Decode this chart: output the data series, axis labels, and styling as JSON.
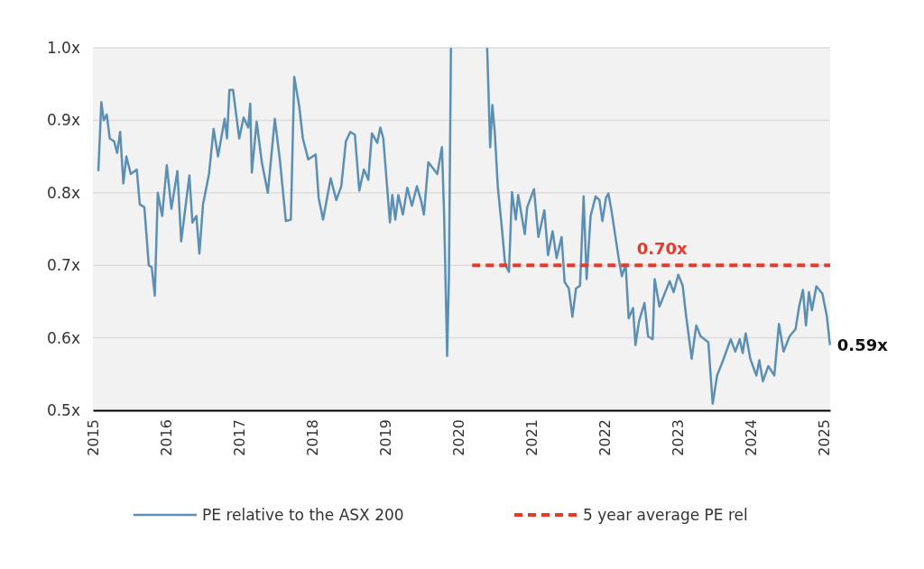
{
  "chart_data": {
    "type": "line",
    "xlim": [
      "2015-01-01",
      "2025-02-01"
    ],
    "xticks": [
      "2015",
      "2016",
      "2017",
      "2018",
      "2019",
      "2020",
      "2021",
      "2022",
      "2023",
      "2024",
      "2025"
    ],
    "ylim": [
      0.5,
      1.0
    ],
    "yticks": [
      {
        "value": 0.5,
        "label": "0.5x"
      },
      {
        "value": 0.6,
        "label": "0.6x"
      },
      {
        "value": 0.7,
        "label": "0.7x"
      },
      {
        "value": 0.8,
        "label": "0.8x"
      },
      {
        "value": 0.9,
        "label": "0.9x"
      },
      {
        "value": 1.0,
        "label": "1.0x"
      }
    ],
    "grid": "y",
    "legend": "bottom",
    "series": [
      {
        "name": "PE relative to the ASX 200",
        "color": "#5b8fb3",
        "line_style": "solid",
        "x": [
          "2015-01-28",
          "2015-02-12",
          "2015-02-24",
          "2015-03-11",
          "2015-03-26",
          "2015-04-17",
          "2015-05-02",
          "2015-05-17",
          "2015-06-02",
          "2015-06-17",
          "2015-07-09",
          "2015-08-08",
          "2015-08-23",
          "2015-09-15",
          "2015-10-07",
          "2015-10-22",
          "2015-11-06",
          "2015-11-21",
          "2015-12-13",
          "2016-01-05",
          "2016-01-28",
          "2016-02-27",
          "2016-03-17",
          "2016-04-27",
          "2016-05-12",
          "2016-06-01",
          "2016-06-16",
          "2016-07-04",
          "2016-08-03",
          "2016-08-26",
          "2016-09-17",
          "2016-10-20",
          "2016-11-01",
          "2016-11-13",
          "2016-12-01",
          "2017-01-01",
          "2017-01-23",
          "2017-02-15",
          "2017-02-25",
          "2017-03-05",
          "2017-03-29",
          "2017-04-24",
          "2017-05-24",
          "2017-06-28",
          "2017-07-23",
          "2017-08-22",
          "2017-09-16",
          "2017-10-03",
          "2017-10-28",
          "2017-11-15",
          "2017-12-12",
          "2018-01-18",
          "2018-02-02",
          "2018-02-24",
          "2018-04-03",
          "2018-05-01",
          "2018-05-26",
          "2018-06-18",
          "2018-07-10",
          "2018-08-02",
          "2018-08-24",
          "2018-09-16",
          "2018-10-08",
          "2018-10-26",
          "2018-11-22",
          "2018-12-07",
          "2018-12-22",
          "2019-01-24",
          "2019-02-05",
          "2019-02-20",
          "2019-03-07",
          "2019-03-30",
          "2019-04-21",
          "2019-05-14",
          "2019-06-08",
          "2019-06-28",
          "2019-07-13",
          "2019-08-04",
          "2019-08-27",
          "2019-09-18",
          "2019-10-11",
          "2019-10-22",
          "2019-11-06",
          "2019-11-15",
          "2019-11-25",
          "2020-02-15",
          "2020-05-24",
          "2020-06-08",
          "2020-06-19",
          "2020-07-01",
          "2020-07-16",
          "2020-08-07",
          "2020-08-22",
          "2020-09-10",
          "2020-09-25",
          "2020-10-14",
          "2020-10-26",
          "2020-11-28",
          "2020-12-10",
          "2021-01-13",
          "2021-02-04",
          "2021-03-06",
          "2021-03-24",
          "2021-04-16",
          "2021-05-06",
          "2021-05-31",
          "2021-06-15",
          "2021-07-06",
          "2021-07-24",
          "2021-08-11",
          "2021-08-31",
          "2021-09-18",
          "2021-10-03",
          "2021-10-23",
          "2021-11-17",
          "2021-12-06",
          "2021-12-21",
          "2022-01-08",
          "2022-01-20",
          "2022-02-04",
          "2022-02-22",
          "2022-03-12",
          "2022-03-28",
          "2022-04-16",
          "2022-05-01",
          "2022-05-23",
          "2022-06-04",
          "2022-06-22",
          "2022-07-19",
          "2022-08-06",
          "2022-08-29",
          "2022-09-08",
          "2022-10-02",
          "2022-10-28",
          "2022-11-22",
          "2022-12-12",
          "2023-01-04",
          "2023-01-26",
          "2023-02-10",
          "2023-03-12",
          "2023-04-04",
          "2023-04-26",
          "2023-06-03",
          "2023-06-25",
          "2023-07-17",
          "2023-08-16",
          "2023-09-23",
          "2023-10-16",
          "2023-11-07",
          "2023-11-22",
          "2023-12-07",
          "2023-12-30",
          "2024-01-29",
          "2024-02-13",
          "2024-03-02",
          "2024-03-29",
          "2024-04-28",
          "2024-05-21",
          "2024-06-13",
          "2024-07-13",
          "2024-08-12",
          "2024-08-30",
          "2024-09-18",
          "2024-10-03",
          "2024-10-18",
          "2024-11-02",
          "2024-11-24",
          "2024-12-24",
          "2025-01-16",
          "2025-01-31"
        ],
        "values": [
          0.83,
          0.925,
          0.9,
          0.908,
          0.875,
          0.871,
          0.855,
          0.884,
          0.813,
          0.85,
          0.826,
          0.832,
          0.784,
          0.78,
          0.7,
          0.697,
          0.658,
          0.8,
          0.768,
          0.838,
          0.778,
          0.83,
          0.733,
          0.824,
          0.759,
          0.768,
          0.716,
          0.784,
          0.826,
          0.888,
          0.85,
          0.902,
          0.875,
          0.942,
          0.942,
          0.875,
          0.904,
          0.89,
          0.923,
          0.828,
          0.898,
          0.842,
          0.8,
          0.902,
          0.846,
          0.761,
          0.763,
          0.96,
          0.919,
          0.875,
          0.846,
          0.853,
          0.793,
          0.763,
          0.82,
          0.79,
          0.809,
          0.871,
          0.884,
          0.88,
          0.803,
          0.832,
          0.818,
          0.882,
          0.869,
          0.89,
          0.875,
          0.759,
          0.797,
          0.763,
          0.797,
          0.77,
          0.807,
          0.782,
          0.809,
          0.79,
          0.77,
          0.842,
          0.834,
          0.826,
          0.863,
          0.768,
          0.575,
          0.685,
          1.0,
          null,
          1.0,
          0.863,
          0.921,
          0.884,
          0.809,
          0.747,
          0.701,
          0.691,
          0.801,
          0.763,
          0.797,
          0.743,
          0.78,
          0.805,
          0.739,
          0.776,
          0.714,
          0.747,
          0.71,
          0.739,
          0.677,
          0.668,
          0.629,
          0.668,
          0.672,
          0.795,
          0.681,
          0.768,
          0.795,
          0.79,
          0.761,
          0.793,
          0.799,
          0.776,
          0.743,
          0.71,
          0.685,
          0.701,
          0.627,
          0.641,
          0.59,
          0.623,
          0.648,
          0.602,
          0.598,
          0.681,
          0.643,
          0.661,
          0.678,
          0.663,
          0.687,
          0.672,
          0.635,
          0.571,
          0.617,
          0.602,
          0.594,
          0.509,
          0.548,
          0.569,
          0.598,
          0.581,
          0.598,
          0.579,
          0.606,
          0.571,
          0.548,
          0.569,
          0.54,
          0.561,
          0.548,
          0.619,
          0.581,
          0.602,
          0.612,
          0.643,
          0.666,
          0.617,
          0.663,
          0.638,
          0.671,
          0.661,
          0.629,
          0.59
        ]
      },
      {
        "name": "5 year average PE rel",
        "color": "#e8392b",
        "line_style": "dashed",
        "x": [
          "2020-03-10",
          "2025-02-01"
        ],
        "values": [
          0.7,
          0.7
        ]
      }
    ],
    "annotations": [
      {
        "text": "0.70x",
        "x": "2022-10-15",
        "y": 0.7
      },
      {
        "text": "0.59x",
        "x": "2025-01-31",
        "y": 0.59
      }
    ]
  }
}
